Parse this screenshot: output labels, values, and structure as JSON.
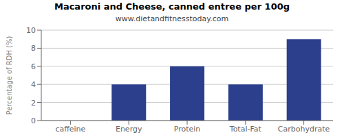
{
  "chart_data": {
    "type": "bar",
    "title": "Macaroni and Cheese, canned entree per 100g",
    "subtitle": "www.dietandfitnesstoday.com",
    "categories": [
      "caffeine",
      "Energy",
      "Protein",
      "Total-Fat",
      "Carbohydrate"
    ],
    "values": [
      0,
      4,
      6,
      4,
      9
    ],
    "color": "#2b3f8c",
    "ylabel": "Percentage of RDH (%)",
    "ylim": [
      0,
      10
    ],
    "yticks": [
      0,
      2,
      4,
      6,
      8,
      10
    ],
    "grid": true
  }
}
